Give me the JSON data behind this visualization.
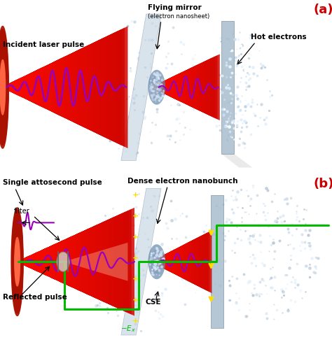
{
  "bg_color": "#ffffff",
  "panel_a_label": "(a)",
  "panel_b_label": "(b)",
  "label_color_red": "#cc0000",
  "text_incident": "Incident laser pulse",
  "text_flying": "Flying mirror",
  "text_nanosheet": "(electron nanosheet)",
  "text_hot": "Hot electrons",
  "text_single": "Single attosecond pulse",
  "text_filter": "filter",
  "text_reflected": "Reflected pulse",
  "text_dense": "Dense electron nanobunch",
  "text_cse": "CSE",
  "text_ex": "$-E_x$",
  "wave_color": "#9900bb",
  "laser_red_dark": "#aa1100",
  "laser_red": "#cc2200",
  "laser_red_light": "#ee5533",
  "mirror_blue_light": "#ccdded",
  "mirror_blue": "#b0c8dd",
  "panel_steel": "#a8bece",
  "scatter_blue": "#b8cede",
  "scatter_white": "#ddeeff",
  "green_color": "#00bb00",
  "yellow_color": "#ffdd00",
  "figsize": [
    4.74,
    4.99
  ],
  "dpi": 100
}
